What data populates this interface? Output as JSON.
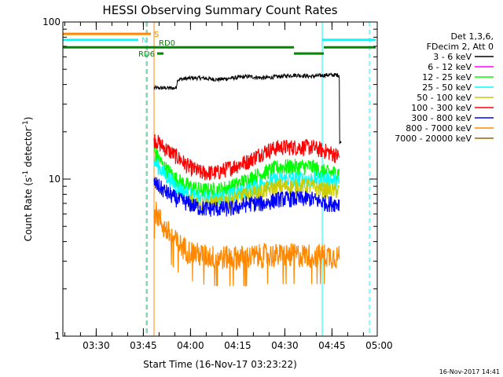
{
  "chart_data": {
    "type": "line",
    "title": "HESSI Observing Summary Count Rates",
    "xlabel": "Start Time (16-Nov-17 03:23:22)",
    "ylabel": "Count Rate (s⁻¹ detector⁻¹)",
    "ylabel_plain": "Count Rate (s",
    "ylabel_sup1": "-1",
    "ylabel_mid": " detector",
    "ylabel_sup2": "-1",
    "ylabel_end": ")",
    "y_scale": "log",
    "ylim": [
      1,
      100
    ],
    "xlim_minutes": [
      -4,
      96
    ],
    "x_ticks": [
      "03:30",
      "03:45",
      "04:00",
      "04:15",
      "04:30",
      "04:45",
      "05:00"
    ],
    "x_tick_minutes": [
      6.6,
      21.6,
      36.6,
      51.6,
      66.6,
      81.6,
      96.6
    ],
    "y_ticks": [
      "1",
      "10",
      "100"
    ],
    "y_tick_values": [
      1,
      10,
      100
    ],
    "legend": {
      "header": [
        "Det 1,3,6,",
        "FDecim 2, Att 0"
      ],
      "placement": "right",
      "entries": [
        {
          "label": "3 - 6 keV",
          "color": "#000000"
        },
        {
          "label": "6 - 12 keV",
          "color": "#ff00ff"
        },
        {
          "label": "12 - 25 keV",
          "color": "#00ff00"
        },
        {
          "label": "25 - 50 keV",
          "color": "#00ffff"
        },
        {
          "label": "50 - 100 keV",
          "color": "#cccc00"
        },
        {
          "label": "100 - 300 keV",
          "color": "#ff0000"
        },
        {
          "label": "300 - 800 keV",
          "color": "#0000ff"
        },
        {
          "label": "800 - 7000 keV",
          "color": "#ff8800"
        },
        {
          "label": "7000 - 20000 keV",
          "color": "#996600"
        }
      ]
    },
    "series_segments": [
      {
        "name": "3 - 6 keV",
        "color": "#000000",
        "x": [
          25.0,
          32.0,
          32.5,
          37.0,
          40.0,
          45.0,
          50.0,
          55.0,
          60.0,
          65.0,
          70.0,
          75.0,
          80.0,
          84.0,
          84.5
        ],
        "y": [
          38,
          38,
          43,
          44,
          44,
          43,
          44,
          45,
          44,
          45,
          46,
          45,
          46,
          46,
          17
        ]
      },
      {
        "name": "100 - 300 keV",
        "color": "#ff0000",
        "x": [
          25.0,
          28.0,
          32.0,
          36.0,
          40.0,
          45.0,
          50.0,
          55.0,
          60.0,
          65.0,
          70.0,
          75.0,
          80.0,
          84.0
        ],
        "y": [
          18,
          16,
          14,
          12,
          11,
          11,
          12,
          13,
          15,
          16,
          16,
          16,
          15,
          14
        ]
      },
      {
        "name": "12 - 25 keV",
        "color": "#00ff00",
        "x": [
          25.0,
          28.0,
          32.0,
          36.0,
          40.0,
          45.0,
          50.0,
          55.0,
          60.0,
          65.0,
          70.0,
          75.0,
          80.0,
          84.0
        ],
        "y": [
          15,
          12,
          10,
          9,
          8.5,
          8.5,
          9,
          10,
          11,
          12,
          12,
          12,
          11,
          11
        ]
      },
      {
        "name": "25 - 50 keV",
        "color": "#00ffff",
        "x": [
          25.0,
          28.0,
          32.0,
          36.0,
          40.0,
          45.0,
          50.0,
          55.0,
          60.0,
          65.0,
          70.0,
          75.0,
          80.0,
          84.0
        ],
        "y": [
          13,
          11,
          9,
          8,
          7.5,
          7.5,
          8,
          8.5,
          9.5,
          10,
          10,
          10,
          10,
          9.5
        ]
      },
      {
        "name": "50 - 100 keV",
        "color": "#cccc00",
        "x": [
          36.0,
          40.0,
          45.0,
          50.0,
          55.0,
          60.0,
          65.0,
          70.0,
          75.0,
          80.0,
          84.0
        ],
        "y": [
          7.5,
          7,
          7,
          7.5,
          8,
          8.5,
          9,
          9,
          9,
          8.5,
          8.5
        ]
      },
      {
        "name": "300 - 800 keV",
        "color": "#0000ff",
        "x": [
          25.0,
          28.0,
          32.0,
          36.0,
          40.0,
          45.0,
          50.0,
          55.0,
          60.0,
          65.0,
          70.0,
          75.0,
          80.0,
          84.0
        ],
        "y": [
          9.5,
          8.5,
          7.5,
          7,
          6.5,
          6.5,
          6.5,
          7,
          7,
          7.5,
          7.5,
          7.5,
          7,
          7
        ]
      },
      {
        "name": "800 - 7000 keV",
        "color": "#ff8800",
        "x": [
          25.0,
          28.0,
          32.0,
          36.0,
          40.0,
          45.0,
          50.0,
          55.0,
          60.0,
          65.0,
          70.0,
          75.0,
          80.0,
          84.0
        ],
        "y": [
          6.5,
          5,
          4,
          3.5,
          3.3,
          3.2,
          3.2,
          3.2,
          3.3,
          3.3,
          3.3,
          3.3,
          3.3,
          3.2
        ]
      }
    ],
    "vertical_lines": [
      {
        "minute": -4.0,
        "color": "#00ffff",
        "style": "solid"
      },
      {
        "minute": 22.5,
        "color": "#00ffff",
        "style": "dashed"
      },
      {
        "minute": 22.8,
        "color": "#ff8800",
        "style": "dashed"
      },
      {
        "minute": 25.0,
        "color": "#ff8800",
        "style": "solid"
      },
      {
        "minute": 78.5,
        "color": "#00ffff",
        "style": "solid"
      },
      {
        "minute": 93.5,
        "color": "#00ffff",
        "style": "dashed"
      }
    ],
    "flag_bars": [
      {
        "label": "S",
        "color": "#ff8800",
        "x": [
          -4.0,
          24.0
        ],
        "y": 84
      },
      {
        "label": "N",
        "color": "#00ffff",
        "x": [
          -4.0,
          20.0
        ],
        "y": 77
      },
      {
        "label": "",
        "color": "#00ffff",
        "x": [
          78.5,
          95.5
        ],
        "y": 77
      },
      {
        "label": "RD0",
        "color": "#008800",
        "x": [
          -4.0,
          69.5
        ],
        "y": 69
      },
      {
        "label": "",
        "color": "#008800",
        "x": [
          79.0,
          95.5
        ],
        "y": 69
      },
      {
        "label": "RD6",
        "color": "#008800",
        "x": [
          26.0,
          28.0
        ],
        "y": 63
      },
      {
        "label": "",
        "color": "#008800",
        "x": [
          69.5,
          79.0
        ],
        "y": 63
      }
    ]
  },
  "stamp": "16-Nov-2017 14:41"
}
